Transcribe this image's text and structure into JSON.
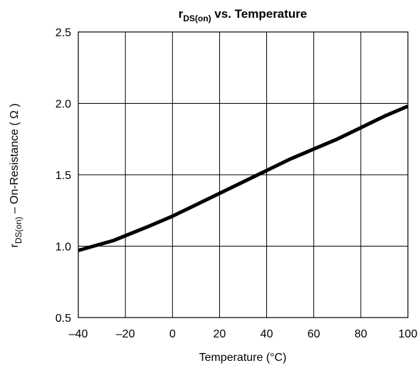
{
  "chart_data": {
    "type": "line",
    "title": {
      "main": "r",
      "sub": "DS(on)",
      "rest": " vs. Temperature"
    },
    "xlabel": "Temperature (°C)",
    "ylabel": {
      "main": "r",
      "sub": "DS(on)",
      "rest": "  – On-Resistance ( Ω )"
    },
    "xlim": [
      -40,
      100
    ],
    "ylim": [
      0.5,
      2.5
    ],
    "xticks": [
      -40,
      -20,
      0,
      20,
      40,
      60,
      80,
      100
    ],
    "xtick_labels": [
      "–40",
      "–20",
      "0",
      "20",
      "40",
      "60",
      "80",
      "100"
    ],
    "yticks": [
      0.5,
      1.0,
      1.5,
      2.0,
      2.5
    ],
    "ytick_labels": [
      "0.5",
      "1.0",
      "1.5",
      "2.0",
      "2.5"
    ],
    "grid": true,
    "series": [
      {
        "x": [
          -40,
          -25,
          -10,
          0,
          10,
          25,
          40,
          50,
          60,
          70,
          80,
          90,
          100
        ],
        "y": [
          0.97,
          1.04,
          1.14,
          1.21,
          1.29,
          1.41,
          1.53,
          1.61,
          1.68,
          1.75,
          1.83,
          1.91,
          1.98
        ],
        "color": "#000000"
      }
    ]
  }
}
